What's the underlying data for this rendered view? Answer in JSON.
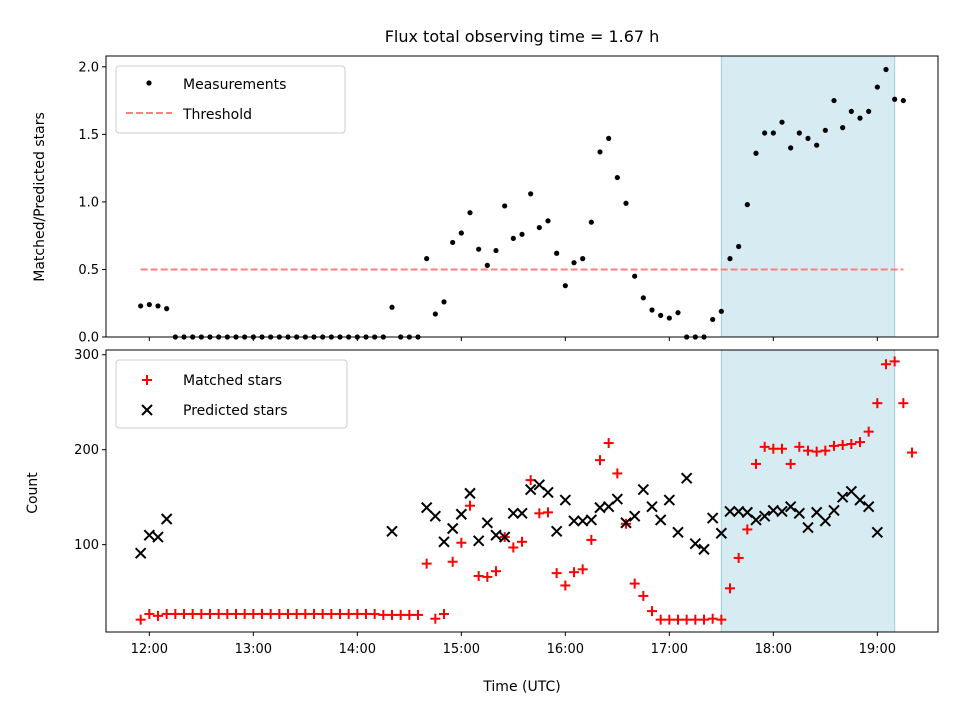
{
  "chart_data": [
    {
      "type": "scatter",
      "title": "Flux total observing time = 1.67 h",
      "xlabel": "",
      "ylabel": "Matched/Predicted stars",
      "xlim": [
        "11:35",
        "19:35"
      ],
      "ylim": [
        0,
        2.08
      ],
      "y_ticks": [
        "0.0",
        "0.5",
        "1.0",
        "1.5",
        "2.0"
      ],
      "legend_position": "upper left",
      "highlight_span": {
        "start": "17:30",
        "end": "19:10",
        "color": "#add8e6"
      },
      "series": [
        {
          "name": "Measurements",
          "marker": "dot",
          "color": "#000000",
          "points": [
            [
              "11:55",
              0.23
            ],
            [
              "12:00",
              0.24
            ],
            [
              "12:05",
              0.23
            ],
            [
              "12:10",
              0.21
            ],
            [
              "12:15",
              0.0
            ],
            [
              "12:20",
              0.0
            ],
            [
              "12:25",
              0.0
            ],
            [
              "12:30",
              0.0
            ],
            [
              "12:35",
              0.0
            ],
            [
              "12:40",
              0.0
            ],
            [
              "12:45",
              0.0
            ],
            [
              "12:50",
              0.0
            ],
            [
              "12:55",
              0.0
            ],
            [
              "13:00",
              0.0
            ],
            [
              "13:05",
              0.0
            ],
            [
              "13:10",
              0.0
            ],
            [
              "13:15",
              0.0
            ],
            [
              "13:20",
              0.0
            ],
            [
              "13:25",
              0.0
            ],
            [
              "13:30",
              0.0
            ],
            [
              "13:35",
              0.0
            ],
            [
              "13:40",
              0.0
            ],
            [
              "13:45",
              0.0
            ],
            [
              "13:50",
              0.0
            ],
            [
              "13:55",
              0.0
            ],
            [
              "14:00",
              0.0
            ],
            [
              "14:05",
              0.0
            ],
            [
              "14:10",
              0.0
            ],
            [
              "14:15",
              0.0
            ],
            [
              "14:20",
              0.22
            ],
            [
              "14:25",
              0.0
            ],
            [
              "14:30",
              0.0
            ],
            [
              "14:35",
              0.0
            ],
            [
              "14:40",
              0.58
            ],
            [
              "14:45",
              0.17
            ],
            [
              "14:50",
              0.26
            ],
            [
              "14:55",
              0.7
            ],
            [
              "15:00",
              0.77
            ],
            [
              "15:05",
              0.92
            ],
            [
              "15:10",
              0.65
            ],
            [
              "15:15",
              0.53
            ],
            [
              "15:20",
              0.64
            ],
            [
              "15:25",
              0.97
            ],
            [
              "15:30",
              0.73
            ],
            [
              "15:35",
              0.76
            ],
            [
              "15:40",
              1.06
            ],
            [
              "15:45",
              0.81
            ],
            [
              "15:50",
              0.86
            ],
            [
              "15:55",
              0.62
            ],
            [
              "16:00",
              0.38
            ],
            [
              "16:05",
              0.55
            ],
            [
              "16:10",
              0.58
            ],
            [
              "16:15",
              0.85
            ],
            [
              "16:20",
              1.37
            ],
            [
              "16:25",
              1.47
            ],
            [
              "16:30",
              1.18
            ],
            [
              "16:35",
              0.99
            ],
            [
              "16:40",
              0.45
            ],
            [
              "16:45",
              0.29
            ],
            [
              "16:50",
              0.2
            ],
            [
              "16:55",
              0.16
            ],
            [
              "17:00",
              0.14
            ],
            [
              "17:05",
              0.18
            ],
            [
              "17:10",
              0.0
            ],
            [
              "17:15",
              0.0
            ],
            [
              "17:20",
              0.0
            ],
            [
              "17:25",
              0.13
            ],
            [
              "17:30",
              0.19
            ],
            [
              "17:35",
              0.58
            ],
            [
              "17:40",
              0.67
            ],
            [
              "17:45",
              0.98
            ],
            [
              "17:50",
              1.36
            ],
            [
              "17:55",
              1.51
            ],
            [
              "18:00",
              1.51
            ],
            [
              "18:05",
              1.59
            ],
            [
              "18:10",
              1.4
            ],
            [
              "18:15",
              1.51
            ],
            [
              "18:20",
              1.47
            ],
            [
              "18:25",
              1.42
            ],
            [
              "18:30",
              1.53
            ],
            [
              "18:35",
              1.75
            ],
            [
              "18:40",
              1.55
            ],
            [
              "18:45",
              1.67
            ],
            [
              "18:50",
              1.62
            ],
            [
              "18:55",
              1.67
            ],
            [
              "19:00",
              1.85
            ],
            [
              "19:05",
              1.98
            ],
            [
              "19:10",
              1.76
            ],
            [
              "19:15",
              1.75
            ]
          ]
        },
        {
          "name": "Threshold",
          "type": "line",
          "style": "dashed",
          "color": "#ff7f7f",
          "x": [
            "11:55",
            "19:15"
          ],
          "y": [
            0.5,
            0.5
          ]
        }
      ]
    },
    {
      "type": "scatter",
      "xlabel": "Time (UTC)",
      "ylabel": "Count",
      "xlim": [
        "11:35",
        "19:35"
      ],
      "ylim": [
        8,
        305
      ],
      "x_ticks": [
        "12:00",
        "13:00",
        "14:00",
        "15:00",
        "16:00",
        "17:00",
        "18:00",
        "19:00"
      ],
      "y_ticks": [
        "100",
        "200",
        "300"
      ],
      "legend_position": "upper left",
      "highlight_span": {
        "start": "17:30",
        "end": "19:10",
        "color": "#add8e6"
      },
      "series": [
        {
          "name": "Matched stars",
          "marker": "plus",
          "color": "#ff0000",
          "points": [
            [
              "11:55",
              21
            ],
            [
              "12:00",
              27
            ],
            [
              "12:05",
              25
            ],
            [
              "12:10",
              27
            ],
            [
              "12:15",
              27
            ],
            [
              "12:20",
              27
            ],
            [
              "12:25",
              27
            ],
            [
              "12:30",
              27
            ],
            [
              "12:35",
              27
            ],
            [
              "12:40",
              27
            ],
            [
              "12:45",
              27
            ],
            [
              "12:50",
              27
            ],
            [
              "12:55",
              27
            ],
            [
              "13:00",
              27
            ],
            [
              "13:05",
              27
            ],
            [
              "13:10",
              27
            ],
            [
              "13:15",
              27
            ],
            [
              "13:20",
              27
            ],
            [
              "13:25",
              27
            ],
            [
              "13:30",
              27
            ],
            [
              "13:35",
              27
            ],
            [
              "13:40",
              27
            ],
            [
              "13:45",
              27
            ],
            [
              "13:50",
              27
            ],
            [
              "13:55",
              27
            ],
            [
              "14:00",
              27
            ],
            [
              "14:05",
              27
            ],
            [
              "14:10",
              27
            ],
            [
              "14:15",
              26
            ],
            [
              "14:20",
              26
            ],
            [
              "14:25",
              26
            ],
            [
              "14:30",
              26
            ],
            [
              "14:35",
              26
            ],
            [
              "14:40",
              80
            ],
            [
              "14:45",
              22
            ],
            [
              "14:50",
              27
            ],
            [
              "14:55",
              82
            ],
            [
              "15:00",
              102
            ],
            [
              "15:05",
              141
            ],
            [
              "15:10",
              67
            ],
            [
              "15:15",
              66
            ],
            [
              "15:20",
              72
            ],
            [
              "15:25",
              108
            ],
            [
              "15:30",
              97
            ],
            [
              "15:35",
              103
            ],
            [
              "15:40",
              168
            ],
            [
              "15:45",
              133
            ],
            [
              "15:50",
              134
            ],
            [
              "15:55",
              70
            ],
            [
              "16:00",
              57
            ],
            [
              "16:05",
              71
            ],
            [
              "16:10",
              74
            ],
            [
              "16:15",
              105
            ],
            [
              "16:20",
              189
            ],
            [
              "16:25",
              207
            ],
            [
              "16:30",
              175
            ],
            [
              "16:35",
              122
            ],
            [
              "16:40",
              59
            ],
            [
              "16:45",
              46
            ],
            [
              "16:50",
              30
            ],
            [
              "16:55",
              21
            ],
            [
              "17:00",
              21
            ],
            [
              "17:05",
              21
            ],
            [
              "17:10",
              21
            ],
            [
              "17:15",
              21
            ],
            [
              "17:20",
              21
            ],
            [
              "17:25",
              22
            ],
            [
              "17:30",
              21
            ],
            [
              "17:35",
              54
            ],
            [
              "17:40",
              86
            ],
            [
              "17:45",
              116
            ],
            [
              "17:50",
              185
            ],
            [
              "17:55",
              203
            ],
            [
              "18:00",
              201
            ],
            [
              "18:05",
              201
            ],
            [
              "18:10",
              185
            ],
            [
              "18:15",
              203
            ],
            [
              "18:20",
              199
            ],
            [
              "18:25",
              198
            ],
            [
              "18:30",
              199
            ],
            [
              "18:35",
              204
            ],
            [
              "18:40",
              205
            ],
            [
              "18:45",
              206
            ],
            [
              "18:50",
              208
            ],
            [
              "18:55",
              219
            ],
            [
              "19:00",
              249
            ],
            [
              "19:05",
              290
            ],
            [
              "19:10",
              293
            ],
            [
              "19:15",
              249
            ],
            [
              "19:20",
              197
            ]
          ]
        },
        {
          "name": "Predicted stars",
          "marker": "x",
          "color": "#000000",
          "points": [
            [
              "11:55",
              91
            ],
            [
              "12:00",
              110
            ],
            [
              "12:05",
              108
            ],
            [
              "12:10",
              127
            ],
            [
              "14:20",
              114
            ],
            [
              "14:40",
              139
            ],
            [
              "14:45",
              130
            ],
            [
              "14:50",
              103
            ],
            [
              "14:55",
              117
            ],
            [
              "15:00",
              132
            ],
            [
              "15:05",
              154
            ],
            [
              "15:10",
              104
            ],
            [
              "15:15",
              123
            ],
            [
              "15:20",
              110
            ],
            [
              "15:25",
              108
            ],
            [
              "15:30",
              133
            ],
            [
              "15:35",
              133
            ],
            [
              "15:40",
              158
            ],
            [
              "15:45",
              163
            ],
            [
              "15:50",
              155
            ],
            [
              "15:55",
              114
            ],
            [
              "16:00",
              147
            ],
            [
              "16:05",
              125
            ],
            [
              "16:10",
              125
            ],
            [
              "16:15",
              126
            ],
            [
              "16:20",
              139
            ],
            [
              "16:25",
              140
            ],
            [
              "16:30",
              148
            ],
            [
              "16:35",
              123
            ],
            [
              "16:40",
              130
            ],
            [
              "16:45",
              158
            ],
            [
              "16:50",
              140
            ],
            [
              "16:55",
              126
            ],
            [
              "17:00",
              147
            ],
            [
              "17:05",
              113
            ],
            [
              "17:10",
              170
            ],
            [
              "17:15",
              101
            ],
            [
              "17:20",
              95
            ],
            [
              "17:25",
              128
            ],
            [
              "17:30",
              112
            ],
            [
              "17:35",
              135
            ],
            [
              "17:40",
              135
            ],
            [
              "17:45",
              134
            ],
            [
              "17:50",
              126
            ],
            [
              "17:55",
              130
            ],
            [
              "18:00",
              136
            ],
            [
              "18:05",
              135
            ],
            [
              "18:10",
              140
            ],
            [
              "18:15",
              133
            ],
            [
              "18:20",
              118
            ],
            [
              "18:25",
              134
            ],
            [
              "18:30",
              125
            ],
            [
              "18:35",
              136
            ],
            [
              "18:40",
              150
            ],
            [
              "18:45",
              156
            ],
            [
              "18:50",
              147
            ],
            [
              "18:55",
              140
            ],
            [
              "19:00",
              113
            ]
          ]
        }
      ]
    }
  ]
}
